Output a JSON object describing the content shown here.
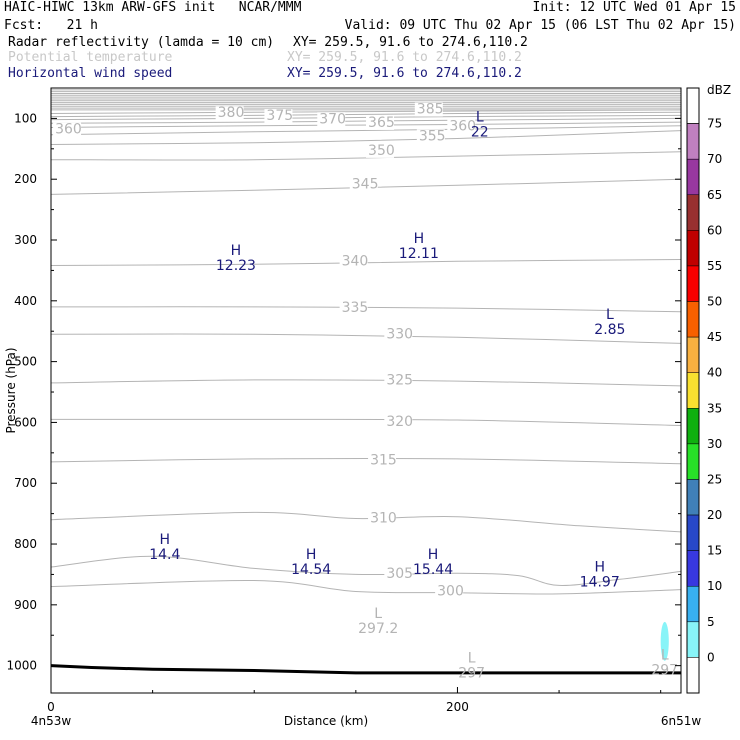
{
  "header": {
    "line1_left": "HAIC-HIWC 13km ARW-GFS init   NCAR/MMM",
    "line1_right": "Init: 12 UTC Wed 01 Apr 15",
    "line2_left": "Fcst:   21 h",
    "line2_right": "Valid: 09 UTC Thu 02 Apr 15 (06 LST Thu 02 Apr 15)",
    "field1_name": "Radar reflectivity (lamda = 10 cm)",
    "field1_xy": "XY= 259.5, 91.6 to 274.6,110.2",
    "field2_name": "Potential temperature",
    "field2_xy": "XY= 259.5, 91.6 to 274.6,110.2",
    "field3_name": "Horizontal wind speed",
    "field3_xy": "XY= 259.5, 91.6 to 274.6,110.2"
  },
  "colors": {
    "field1": "#000000",
    "field2": "#c8c8c8",
    "field3": "#1a1a7a",
    "theta_contour": "#b4b4b4",
    "wind_label": "#1a1a7a",
    "terrain": "#000000",
    "echo": "#88f4f8"
  },
  "chart_data": {
    "type": "cross-section",
    "ylabel": "Pressure (hPa)",
    "xlabel": "Distance (km)",
    "x_ticks": [
      0,
      200
    ],
    "y_ticks": [
      100,
      200,
      300,
      400,
      500,
      600,
      700,
      800,
      900,
      1000
    ],
    "xlim": [
      0,
      310
    ],
    "ylim": [
      1045,
      50
    ],
    "y_scale": "linear",
    "x_start_label": "4n53w",
    "x_end_label": "6n51w",
    "colorbar": {
      "title": "dBZ",
      "levels": [
        0,
        5,
        10,
        15,
        20,
        25,
        30,
        35,
        40,
        45,
        50,
        55,
        60,
        65,
        70,
        75
      ],
      "colors": [
        "#ffffff",
        "#88f4f8",
        "#38b0f0",
        "#3838e0",
        "#2848c8",
        "#4080b8",
        "#28e028",
        "#10b010",
        "#f8e030",
        "#f8b040",
        "#f86000",
        "#f80000",
        "#c00000",
        "#983030",
        "#9838a0",
        "#c080c0"
      ]
    },
    "theta_contours": [
      {
        "value": 300,
        "pts": [
          [
            0,
            870
          ],
          [
            100,
            860
          ],
          [
            150,
            878
          ],
          [
            200,
            880
          ],
          [
            250,
            882
          ],
          [
            310,
            875
          ]
        ]
      },
      {
        "value": 305,
        "pts": [
          [
            0,
            838
          ],
          [
            50,
            820
          ],
          [
            100,
            840
          ],
          [
            150,
            850
          ],
          [
            200,
            848
          ],
          [
            230,
            852
          ],
          [
            250,
            868
          ],
          [
            280,
            858
          ],
          [
            310,
            845
          ]
        ]
      },
      {
        "value": 310,
        "pts": [
          [
            0,
            760
          ],
          [
            100,
            748
          ],
          [
            150,
            758
          ],
          [
            200,
            755
          ],
          [
            260,
            770
          ],
          [
            310,
            780
          ]
        ]
      },
      {
        "value": 315,
        "pts": [
          [
            0,
            665
          ],
          [
            100,
            660
          ],
          [
            200,
            660
          ],
          [
            310,
            668
          ]
        ]
      },
      {
        "value": 320,
        "pts": [
          [
            0,
            595
          ],
          [
            100,
            595
          ],
          [
            200,
            596
          ],
          [
            310,
            605
          ]
        ]
      },
      {
        "value": 325,
        "pts": [
          [
            0,
            535
          ],
          [
            100,
            530
          ],
          [
            200,
            532
          ],
          [
            310,
            540
          ]
        ]
      },
      {
        "value": 330,
        "pts": [
          [
            0,
            455
          ],
          [
            100,
            455
          ],
          [
            200,
            460
          ],
          [
            310,
            470
          ]
        ]
      },
      {
        "value": 335,
        "pts": [
          [
            0,
            410
          ],
          [
            100,
            410
          ],
          [
            200,
            412
          ],
          [
            310,
            418
          ]
        ]
      },
      {
        "value": 340,
        "pts": [
          [
            0,
            342
          ],
          [
            100,
            340
          ],
          [
            200,
            335
          ],
          [
            310,
            332
          ]
        ]
      },
      {
        "value": 345,
        "pts": [
          [
            0,
            225
          ],
          [
            100,
            218
          ],
          [
            200,
            210
          ],
          [
            310,
            200
          ]
        ]
      },
      {
        "value": 350,
        "pts": [
          [
            0,
            168
          ],
          [
            100,
            168
          ],
          [
            200,
            162
          ],
          [
            310,
            155
          ]
        ]
      },
      {
        "value": 355,
        "pts": [
          [
            0,
            143
          ],
          [
            100,
            140
          ],
          [
            200,
            133
          ],
          [
            310,
            120
          ]
        ]
      },
      {
        "value": 360,
        "pts": [
          [
            0,
            127
          ],
          [
            100,
            122
          ],
          [
            200,
            118
          ],
          [
            310,
            112
          ]
        ]
      },
      {
        "value": 365,
        "pts": [
          [
            0,
            115
          ],
          [
            100,
            112
          ],
          [
            200,
            110
          ],
          [
            310,
            106
          ]
        ]
      },
      {
        "value": 370,
        "pts": [
          [
            0,
            108
          ],
          [
            100,
            106
          ],
          [
            200,
            103
          ],
          [
            310,
            100
          ]
        ]
      },
      {
        "value": 375,
        "pts": [
          [
            0,
            102
          ],
          [
            100,
            100
          ],
          [
            200,
            97
          ],
          [
            310,
            95
          ]
        ]
      },
      {
        "value": 380,
        "pts": [
          [
            0,
            97
          ],
          [
            100,
            95
          ],
          [
            200,
            92
          ],
          [
            310,
            90
          ]
        ]
      },
      {
        "value": 385,
        "pts": [
          [
            0,
            92
          ],
          [
            100,
            90
          ],
          [
            200,
            88
          ],
          [
            310,
            86
          ]
        ]
      }
    ],
    "theta_labels": [
      {
        "text": "360",
        "x": 2,
        "p": 125
      },
      {
        "text": "380",
        "x": 82,
        "p": 98
      },
      {
        "text": "375",
        "x": 106,
        "p": 103
      },
      {
        "text": "370",
        "x": 132,
        "p": 108
      },
      {
        "text": "365",
        "x": 156,
        "p": 114
      },
      {
        "text": "385",
        "x": 180,
        "p": 92
      },
      {
        "text": "355",
        "x": 181,
        "p": 136
      },
      {
        "text": "350",
        "x": 156,
        "p": 160
      },
      {
        "text": "345",
        "x": 148,
        "p": 215
      },
      {
        "text": "340",
        "x": 143,
        "p": 342
      },
      {
        "text": "335",
        "x": 143,
        "p": 418
      },
      {
        "text": "330",
        "x": 165,
        "p": 462
      },
      {
        "text": "325",
        "x": 165,
        "p": 538
      },
      {
        "text": "320",
        "x": 165,
        "p": 606
      },
      {
        "text": "315",
        "x": 157,
        "p": 669
      },
      {
        "text": "310",
        "x": 157,
        "p": 765
      },
      {
        "text": "305",
        "x": 165,
        "p": 856
      },
      {
        "text": "300",
        "x": 190,
        "p": 885
      }
    ],
    "wind_extrema": [
      {
        "mark": "H",
        "value": "12.23",
        "x": 91,
        "p": 325
      },
      {
        "mark": "H",
        "value": "12.11",
        "x": 181,
        "p": 305
      },
      {
        "mark": "L",
        "value": "22",
        "x": 211,
        "p": 105
      },
      {
        "mark": "L",
        "value": "2.85",
        "x": 275,
        "p": 430
      },
      {
        "mark": "H",
        "value": "14.4",
        "x": 56,
        "p": 800
      },
      {
        "mark": "H",
        "value": "14.54",
        "x": 128,
        "p": 825
      },
      {
        "mark": "H",
        "value": "15.44",
        "x": 188,
        "p": 825
      },
      {
        "mark": "H",
        "value": "14.97",
        "x": 270,
        "p": 845
      }
    ],
    "theta_extrema": [
      {
        "mark": "L",
        "value": "297.2",
        "x": 161,
        "p": 922
      },
      {
        "mark": "L",
        "value": "297",
        "x": 207,
        "p": 995
      },
      {
        "mark": "L",
        "value": "297",
        "x": 302,
        "p": 990
      }
    ],
    "theta_extra_labels": [
      {
        "text": "360",
        "x": 196,
        "p": 120
      }
    ],
    "terrain": [
      [
        0,
        1000
      ],
      [
        20,
        1003
      ],
      [
        50,
        1006
      ],
      [
        100,
        1008
      ],
      [
        150,
        1012
      ],
      [
        200,
        1012
      ],
      [
        250,
        1012
      ],
      [
        310,
        1012
      ]
    ],
    "echo": {
      "x": 302,
      "p": 960,
      "rx_km": 2,
      "rp_hpa": 32
    }
  }
}
